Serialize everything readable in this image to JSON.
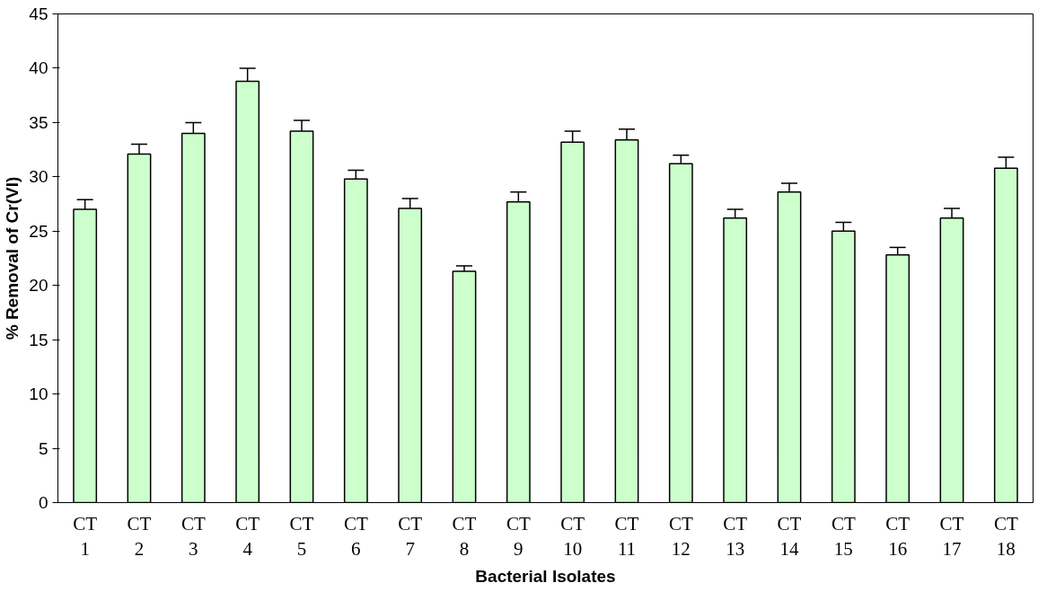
{
  "chart_data": {
    "type": "bar",
    "xlabel": "Bacterial Isolates",
    "ylabel": "% Removal of Cr(VI)",
    "categories": [
      "CT\n1",
      "CT\n2",
      "CT\n3",
      "CT\n4",
      "CT\n5",
      "CT\n6",
      "CT\n7",
      "CT\n8",
      "CT\n9",
      "CT\n10",
      "CT\n11",
      "CT\n12",
      "CT\n13",
      "CT\n14",
      "CT\n15",
      "CT\n16",
      "CT\n17",
      "CT\n18"
    ],
    "series": [
      {
        "color": "#ccffcc",
        "values": [
          27.0,
          32.1,
          34.0,
          38.8,
          34.2,
          29.8,
          27.1,
          21.3,
          27.7,
          33.2,
          33.4,
          31.2,
          26.2,
          28.6,
          25.0,
          22.8,
          26.2,
          30.8
        ],
        "errors": [
          0.9,
          0.9,
          1.0,
          1.2,
          1.0,
          0.8,
          0.9,
          0.5,
          0.9,
          1.0,
          1.0,
          0.8,
          0.8,
          0.8,
          0.8,
          0.7,
          0.9,
          1.0
        ]
      }
    ],
    "ylim": [
      0,
      45
    ],
    "yticks": [
      0,
      5,
      10,
      15,
      20,
      25,
      30,
      35,
      40,
      45
    ],
    "grid": false
  }
}
